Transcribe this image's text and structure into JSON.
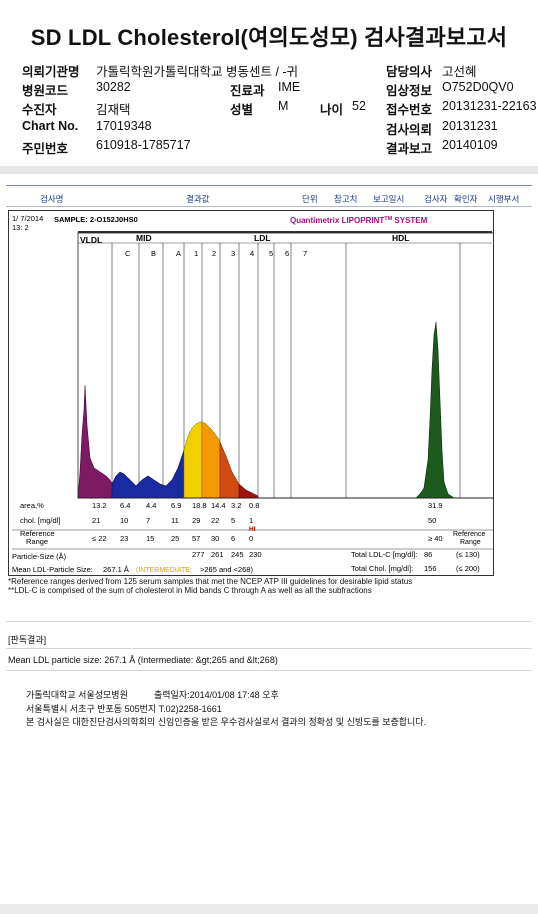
{
  "title": "SD LDL Cholesterol(여의도성모) 검사결과보고서",
  "header": {
    "left": [
      {
        "label": "의뢰기관명",
        "value": "가톨릭학원가톨릭대학교 병동센트 / -귀"
      },
      {
        "label": "병원코드",
        "value": "30282"
      },
      {
        "label": "수진자",
        "value": "김재택"
      },
      {
        "label": "Chart No.",
        "value": "17019348"
      },
      {
        "label": "주민번호",
        "value": "610918-1785717"
      }
    ],
    "mid": [
      {
        "label": "진료과",
        "value": "IME"
      },
      {
        "label": "성별",
        "value": "M"
      }
    ],
    "age": {
      "label": "나이",
      "value": "52"
    },
    "right": [
      {
        "label": "담당의사",
        "value": "고선혜"
      },
      {
        "label": "임상정보",
        "value": "O752D0QV0"
      },
      {
        "label": "접수번호",
        "value": "20131231-22163"
      },
      {
        "label": "검사의뢰",
        "value": "20131231"
      },
      {
        "label": "결과보고",
        "value": "20140109"
      }
    ]
  },
  "columns": [
    "검사명",
    "결과값",
    "단위",
    "참고치",
    "보고일시",
    "검사자",
    "확인자",
    "시행부서"
  ],
  "report": {
    "date": "1/ 7/2014",
    "time": "13: 2",
    "sample": "SAMPLE: 2-O152J0HS0",
    "brand": "Quantimetrix LIPOPRINT",
    "brand_sup": "TM",
    "brand_tail": " SYSTEM",
    "sections": {
      "vldl": "VLDL",
      "mid": "MID",
      "ldl": "LDL",
      "hdl": "HDL"
    },
    "bands": [
      "C",
      "B",
      "A",
      "1",
      "2",
      "3",
      "4",
      "5",
      "6",
      "7"
    ],
    "rows": {
      "area_label": "area,%",
      "area": [
        "13.2",
        "6.4",
        "4.4",
        "6.9",
        "18.8",
        "14.4",
        "3.2",
        "0.8",
        "31.9"
      ],
      "chol_label": "chol. [mg/dl]",
      "chol": [
        "21",
        "10",
        "7",
        "11",
        "29",
        "22",
        "5",
        "1",
        "50"
      ],
      "hi_flag": "HI",
      "ref_label": "Reference Range",
      "ref": [
        "≤ 22",
        "23",
        "15",
        "25",
        "57",
        "30",
        "6",
        "0",
        "≥ 40"
      ],
      "ref_right": "Reference Range",
      "psize_label": "Particle-Size (Å)",
      "psize": [
        "277",
        "261",
        "245",
        "230"
      ],
      "total_ldl_label": "Total LDL-C [mg/dl]:",
      "total_ldl": "86",
      "total_ldl_ref": "(≤ 130)",
      "total_chol_label": "Total Chol. [mg/dl]:",
      "total_chol": "156",
      "total_chol_ref": "(≤ 200)",
      "mean_label": "Mean LDL-Particle Size:",
      "mean_value": "267.1 Å",
      "mean_class": "(INTERMEDIATE;",
      "mean_range": ">265 and <268)"
    }
  },
  "chart_data": {
    "type": "area",
    "title": "",
    "series": [
      {
        "name": "VLDL",
        "color": "#8a1a6a"
      },
      {
        "name": "MID",
        "color": "#1a2aa0"
      },
      {
        "name": "LDL",
        "color": "#f2b800"
      },
      {
        "name": "HDL",
        "color": "#1d5a1d"
      }
    ],
    "categories": [
      "VLDL",
      "C",
      "B",
      "A",
      "1",
      "2",
      "3",
      "4",
      "5",
      "6",
      "7",
      "HDL"
    ],
    "values": [
      21,
      10,
      7,
      11,
      29,
      22,
      5,
      1,
      0,
      0,
      0,
      50
    ]
  },
  "footnotes": [
    "*Reference ranges derived from 125 serum samples that met the NCEP ATP III guidelines for desirable lipid status",
    "**LDL-C is comprised of the sum of cholesterol in Mid bands C through A as well as all the subfractions"
  ],
  "result": {
    "heading": "[판독결과]",
    "text": "Mean LDL particle size: 267.1 Å (Intermediate: &gt;265 and &lt;268)"
  },
  "footer": {
    "hospital": "가톨릭대학교 서울성모병원",
    "printed": "출력일자:2014/01/08 17:48 오후",
    "address": "서울특별시 서초구 반포동 505번지 T.02)2258-1661",
    "certification": "본 검사실은 대한진단검사의학회의 신임인증을 받은 우수검사실로서 결과의 정확성 및 신빙도를 보증합니다."
  }
}
